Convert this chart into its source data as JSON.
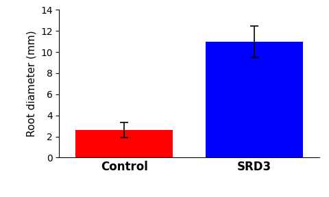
{
  "categories": [
    "Control",
    "SRD3"
  ],
  "values": [
    2.6,
    11.0
  ],
  "errors": [
    0.7,
    1.5
  ],
  "bar_colors": [
    "#ff0000",
    "#0000ff"
  ],
  "ylabel": "Root diameter (mm)",
  "ylim": [
    0,
    14
  ],
  "yticks": [
    0,
    2,
    4,
    6,
    8,
    10,
    12,
    14
  ],
  "bar_width": 0.75,
  "background_color": "#ffffff",
  "tick_labelsize": 10,
  "ylabel_fontsize": 11,
  "xlabel_fontsize": 12
}
